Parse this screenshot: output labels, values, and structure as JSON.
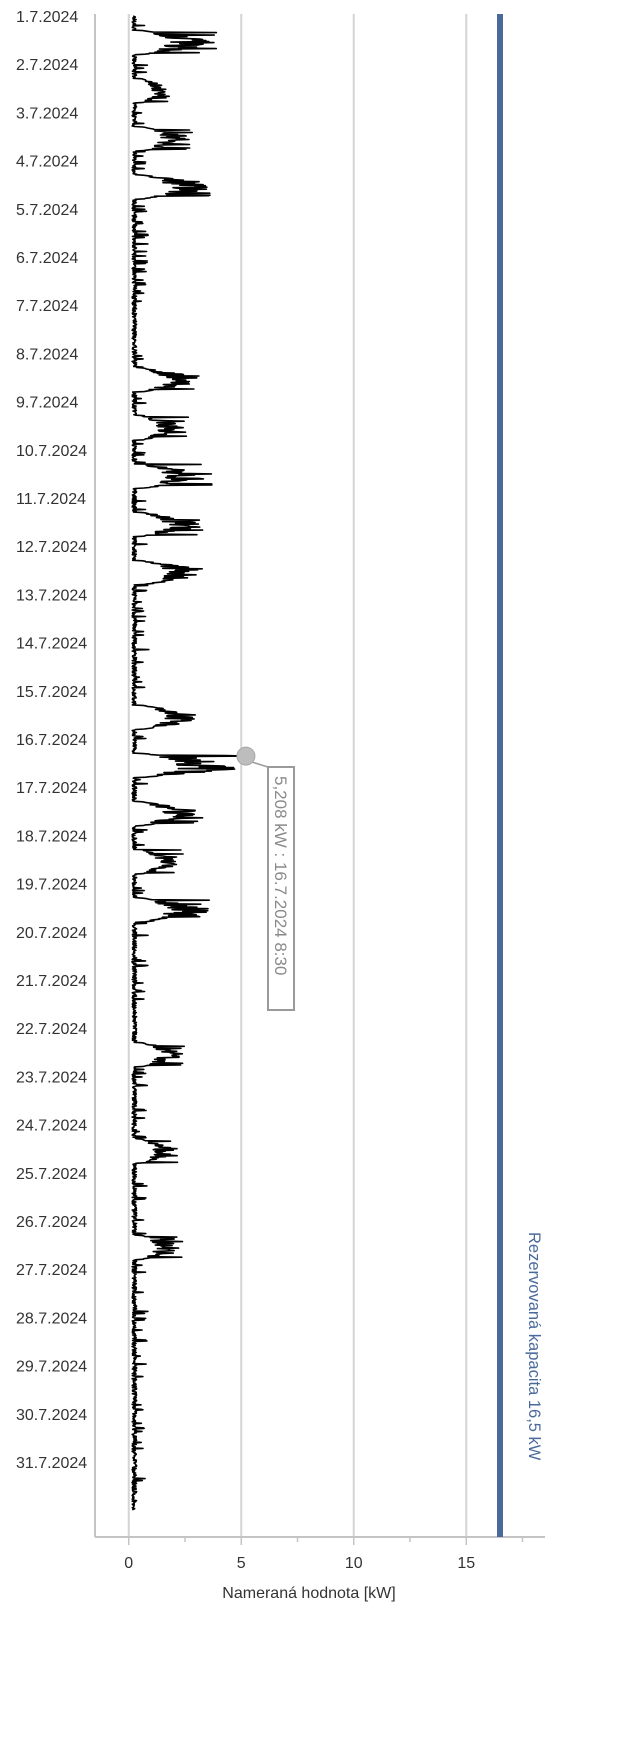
{
  "chart_data": {
    "type": "line",
    "orientation": "horizontal-time",
    "xlabel": "Nameraná hodnota [kW]",
    "xlim": [
      -1.5,
      18.5
    ],
    "xticks": [
      "0",
      "5",
      "10",
      "15"
    ],
    "xtick_values": [
      0,
      5,
      10,
      15
    ],
    "ylim": [
      "2024-07-01",
      "2024-08-01"
    ],
    "date_labels": [
      "1.7.2024",
      "2.7.2024",
      "3.7.2024",
      "4.7.2024",
      "5.7.2024",
      "6.7.2024",
      "7.7.2024",
      "8.7.2024",
      "9.7.2024",
      "10.7.2024",
      "11.7.2024",
      "12.7.2024",
      "13.7.2024",
      "14.7.2024",
      "15.7.2024",
      "16.7.2024",
      "17.7.2024",
      "18.7.2024",
      "19.7.2024",
      "20.7.2024",
      "21.7.2024",
      "22.7.2024",
      "23.7.2024",
      "24.7.2024",
      "25.7.2024",
      "26.7.2024",
      "27.7.2024",
      "28.7.2024",
      "29.7.2024",
      "30.7.2024",
      "31.7.2024"
    ],
    "grid": true,
    "series": [
      {
        "color": "#000000",
        "daily_peaks_kw": [
          3.9,
          2.0,
          3.0,
          3.9,
          0.5,
          0.5,
          0.5,
          3.3,
          2.7,
          3.7,
          3.3,
          3.6,
          0.5,
          0.5,
          3.3,
          5.208,
          3.3,
          2.5,
          3.8,
          0.7,
          0.7,
          2.7,
          0.6,
          2.2,
          0.7,
          2.4,
          0.7,
          0.7,
          0.8,
          0.8,
          0.8
        ]
      }
    ],
    "reference_line": {
      "value": 16.5,
      "label": "Rezervovaná kapacita 16,5 kW",
      "color": "#4a6a9c"
    },
    "tooltip": {
      "value": 5.208,
      "date": "2024-07-16 08:30",
      "text": "5,208 kW : 16.7.2024 8:30"
    }
  },
  "colors": {
    "grid": "#d4d4d4",
    "axis": "#c4c4c4",
    "line": "#000000",
    "reference": "#4a6a9c",
    "marker": "#bdbdbd",
    "tooltip": "#9a9a9a"
  }
}
